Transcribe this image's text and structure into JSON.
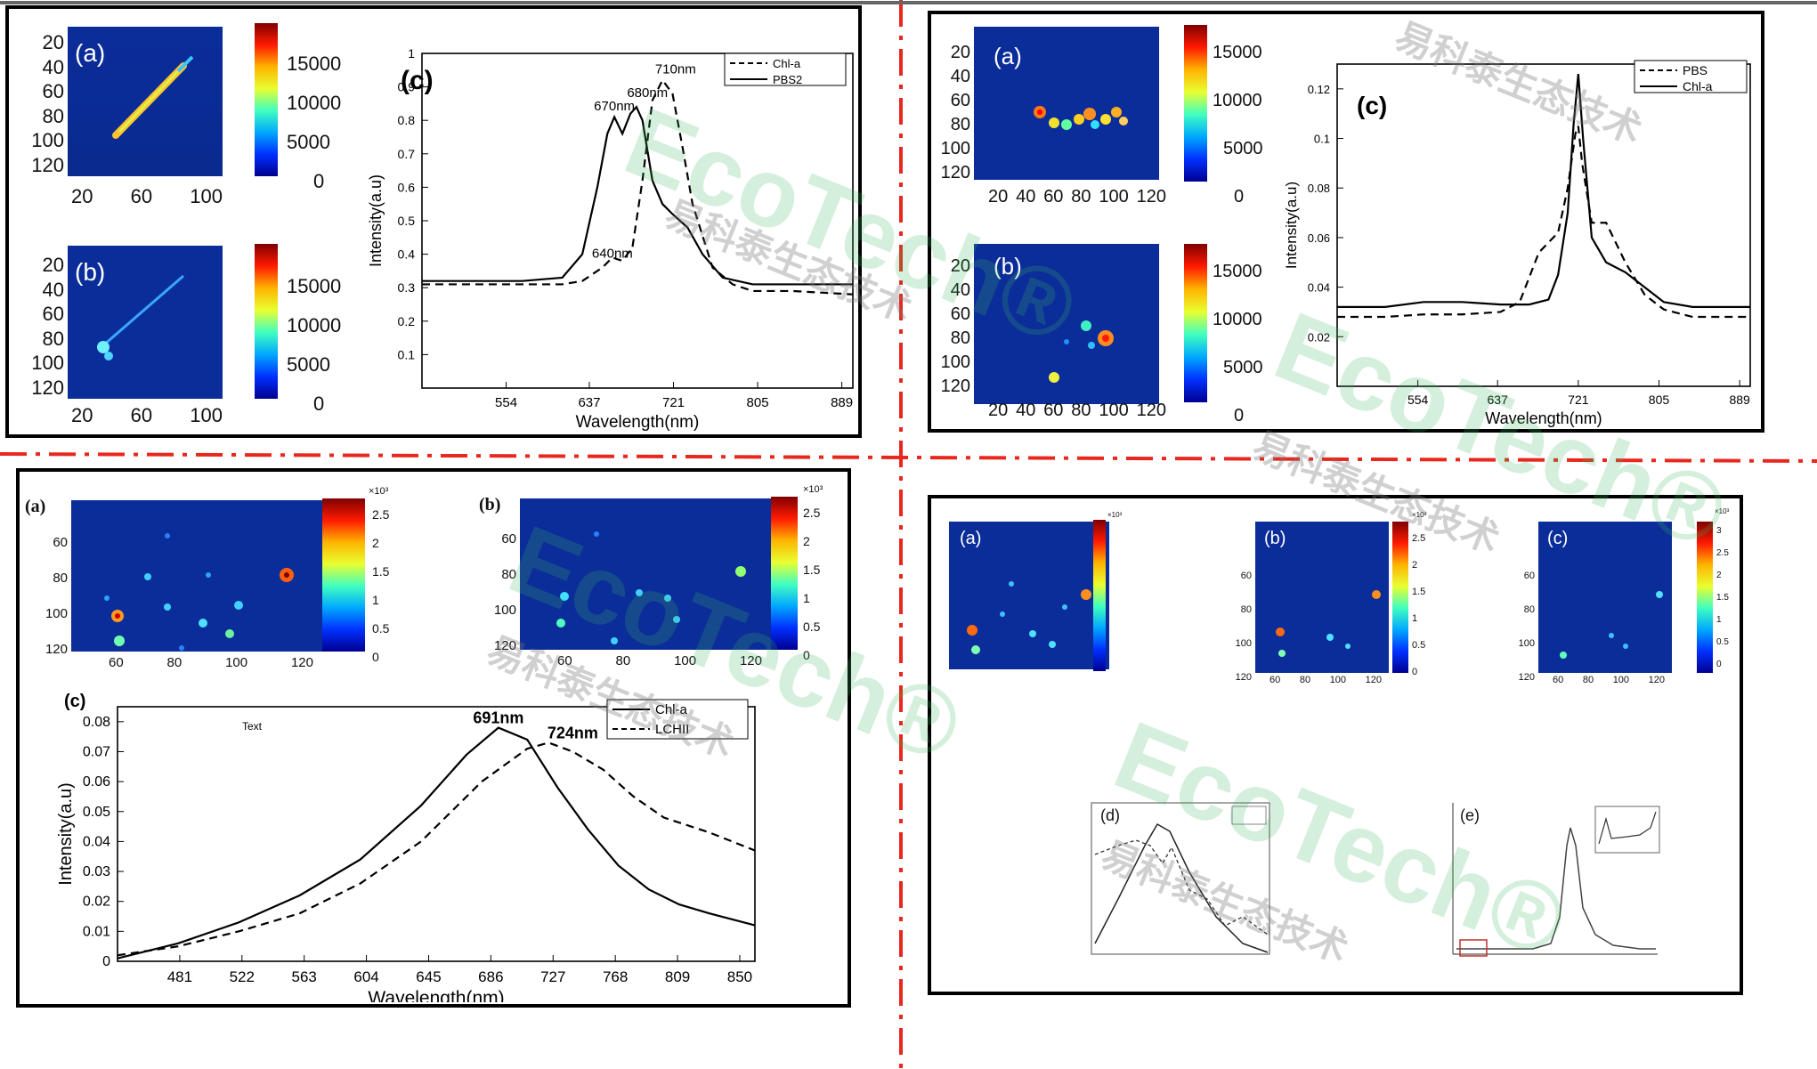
{
  "accent_colors": {
    "frame": "#000000",
    "divider": "#e8281e",
    "watermark": "#39b45a"
  },
  "watermark": {
    "brand": "EcoTech®",
    "cn": "易科泰生态技术"
  },
  "panel1": {
    "map_a": {
      "label": "(a)",
      "yticks": [
        "20",
        "40",
        "60",
        "80",
        "100",
        "120"
      ],
      "xticks": [
        "20",
        "60",
        "100"
      ],
      "cbar": [
        "15000",
        "10000",
        "5000",
        "0"
      ]
    },
    "map_b": {
      "label": "(b)",
      "yticks": [
        "20",
        "40",
        "60",
        "80",
        "100",
        "120"
      ],
      "xticks": [
        "20",
        "60",
        "100"
      ],
      "cbar": [
        "15000",
        "10000",
        "5000",
        "0"
      ]
    }
  },
  "panel2": {
    "map_a": {
      "label": "(a)",
      "yticks": [
        "20",
        "40",
        "60",
        "80",
        "100",
        "120"
      ],
      "xticks": [
        "20",
        "40",
        "60",
        "80",
        "100",
        "120"
      ],
      "cbar": [
        "15000",
        "10000",
        "5000",
        "0"
      ]
    },
    "map_b": {
      "label": "(b)",
      "yticks": [
        "20",
        "40",
        "60",
        "80",
        "100",
        "120"
      ],
      "xticks": [
        "20",
        "40",
        "60",
        "80",
        "100",
        "120"
      ],
      "cbar": [
        "15000",
        "10000",
        "5000",
        "0"
      ]
    }
  },
  "panel3": {
    "map_a": {
      "label": "(a)",
      "exp": "×10³",
      "yticks": [
        "60",
        "80",
        "100",
        "120"
      ],
      "xticks": [
        "60",
        "80",
        "100",
        "120"
      ],
      "cbar": [
        "2.5",
        "2",
        "1.5",
        "1",
        "0.5",
        "0"
      ]
    },
    "map_b": {
      "label": "(b)",
      "exp": "×10³",
      "yticks": [
        "60",
        "80",
        "100",
        "120"
      ],
      "xticks": [
        "60",
        "80",
        "100",
        "120"
      ],
      "cbar": [
        "2.5",
        "2",
        "1.5",
        "1",
        "0.5",
        "0"
      ]
    }
  },
  "panel4": {
    "map_a": {
      "label": "(a)",
      "exp": "×10³"
    },
    "map_b": {
      "label": "(b)",
      "exp": "×10³",
      "yticks": [
        "60",
        "80",
        "100",
        "120"
      ],
      "xticks": [
        "60",
        "80",
        "100",
        "120"
      ],
      "cbar": [
        "2.5",
        "2",
        "1.5",
        "1",
        "0.5",
        "0"
      ]
    },
    "map_c": {
      "label": "(c)",
      "exp": "×10³",
      "yticks": [
        "60",
        "80",
        "100",
        "120"
      ],
      "xticks": [
        "60",
        "80",
        "100",
        "120"
      ],
      "cbar": [
        "3",
        "2.5",
        "2",
        "1.5",
        "1",
        "0.5",
        "0"
      ]
    },
    "d_label": "(d)",
    "e_label": "(e)"
  },
  "chart_data": [
    {
      "id": "c1",
      "type": "line",
      "label": "(c)",
      "xlabel": "Wavelength(nm)",
      "ylabel": "Intensity(a.u)",
      "xlim": [
        470,
        900
      ],
      "ylim": [
        0,
        1.0
      ],
      "xticks": [
        554,
        637,
        721,
        805,
        889
      ],
      "yticks": [
        0.1,
        0.2,
        0.3,
        0.4,
        0.5,
        0.6,
        0.7,
        0.8,
        0.9,
        1
      ],
      "annotations": [
        {
          "text": "710nm",
          "x": 723,
          "y": 0.94
        },
        {
          "text": "680nm",
          "x": 695,
          "y": 0.87
        },
        {
          "text": "670nm",
          "x": 662,
          "y": 0.83
        },
        {
          "text": "640nm",
          "x": 660,
          "y": 0.39
        }
      ],
      "series": [
        {
          "name": "Chl-a",
          "style": "dashed",
          "x": [
            470,
            520,
            570,
            610,
            630,
            650,
            660,
            670,
            680,
            690,
            700,
            710,
            720,
            730,
            740,
            760,
            780,
            800,
            840,
            900
          ],
          "y": [
            0.31,
            0.31,
            0.31,
            0.31,
            0.32,
            0.36,
            0.39,
            0.38,
            0.42,
            0.62,
            0.86,
            0.92,
            0.88,
            0.72,
            0.55,
            0.36,
            0.31,
            0.29,
            0.29,
            0.28
          ]
        },
        {
          "name": "PBS2",
          "style": "solid",
          "x": [
            470,
            520,
            570,
            610,
            630,
            645,
            655,
            662,
            670,
            678,
            684,
            690,
            700,
            710,
            720,
            735,
            750,
            770,
            800,
            850,
            900
          ],
          "y": [
            0.32,
            0.32,
            0.32,
            0.33,
            0.4,
            0.6,
            0.76,
            0.81,
            0.76,
            0.82,
            0.84,
            0.8,
            0.62,
            0.55,
            0.52,
            0.48,
            0.4,
            0.33,
            0.31,
            0.31,
            0.31
          ]
        }
      ]
    },
    {
      "id": "c2",
      "type": "line",
      "label": "(c)",
      "xlabel": "Wavelength(nm)",
      "ylabel": "Intensity(a.u)",
      "xlim": [
        470,
        900
      ],
      "ylim": [
        0.0,
        0.13
      ],
      "xticks": [
        554,
        637,
        721,
        805,
        889
      ],
      "yticks": [
        0.02,
        0.04,
        0.06,
        0.08,
        0.1,
        0.12
      ],
      "series": [
        {
          "name": "PBS",
          "style": "dashed",
          "x": [
            470,
            520,
            560,
            600,
            640,
            660,
            680,
            700,
            710,
            718,
            721,
            725,
            735,
            750,
            770,
            790,
            810,
            840,
            900
          ],
          "y": [
            0.028,
            0.028,
            0.029,
            0.029,
            0.03,
            0.034,
            0.054,
            0.062,
            0.08,
            0.102,
            0.105,
            0.09,
            0.066,
            0.066,
            0.05,
            0.037,
            0.031,
            0.028,
            0.028
          ]
        },
        {
          "name": "Chl-a",
          "style": "solid",
          "x": [
            470,
            520,
            560,
            600,
            640,
            670,
            690,
            700,
            710,
            716,
            721,
            726,
            735,
            750,
            770,
            790,
            810,
            840,
            900
          ],
          "y": [
            0.032,
            0.032,
            0.034,
            0.034,
            0.033,
            0.033,
            0.035,
            0.045,
            0.07,
            0.105,
            0.126,
            0.1,
            0.06,
            0.05,
            0.046,
            0.04,
            0.034,
            0.032,
            0.032
          ]
        }
      ]
    },
    {
      "id": "c3",
      "type": "line",
      "label": "(c)",
      "note": "Text",
      "xlabel": "Wavelength(nm)",
      "ylabel": "Intensity(a.u)",
      "xlim": [
        440,
        860
      ],
      "ylim": [
        0,
        0.085
      ],
      "xticks": [
        481,
        522,
        563,
        604,
        645,
        686,
        727,
        768,
        809,
        850
      ],
      "yticks": [
        0,
        0.01,
        0.02,
        0.03,
        0.04,
        0.05,
        0.06,
        0.07,
        0.08
      ],
      "annotations": [
        {
          "text": "691nm",
          "x": 691,
          "y": 0.0795
        },
        {
          "text": "724nm",
          "x": 740,
          "y": 0.0745
        }
      ],
      "series": [
        {
          "name": "Chl-a",
          "style": "solid",
          "x": [
            440,
            480,
            520,
            560,
            600,
            640,
            670,
            691,
            710,
            730,
            750,
            770,
            790,
            810,
            830,
            860
          ],
          "y": [
            0.001,
            0.006,
            0.013,
            0.022,
            0.034,
            0.052,
            0.069,
            0.078,
            0.074,
            0.058,
            0.044,
            0.032,
            0.024,
            0.019,
            0.016,
            0.012
          ]
        },
        {
          "name": "LCHII",
          "style": "dashed",
          "x": [
            440,
            480,
            520,
            560,
            600,
            640,
            680,
            710,
            724,
            740,
            760,
            780,
            800,
            830,
            860
          ],
          "y": [
            0.002,
            0.005,
            0.01,
            0.016,
            0.026,
            0.04,
            0.06,
            0.071,
            0.073,
            0.07,
            0.064,
            0.055,
            0.048,
            0.043,
            0.037
          ]
        }
      ]
    }
  ]
}
